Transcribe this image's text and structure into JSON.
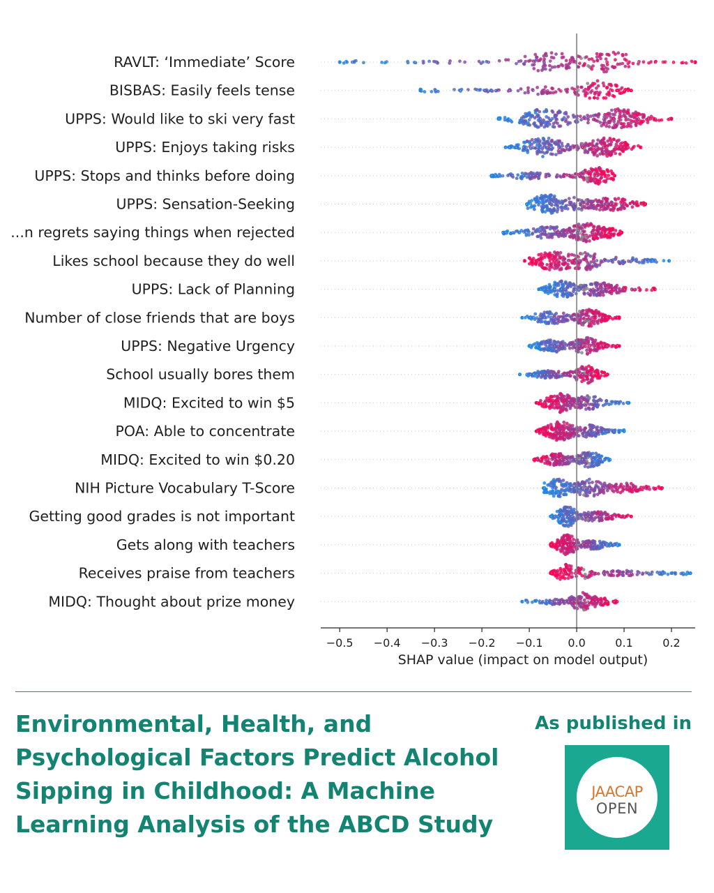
{
  "chart_data": {
    "type": "scatter",
    "subtype": "shap-beeswarm",
    "xlabel": "SHAP value (impact on model output)",
    "xlim": [
      -0.54,
      0.25
    ],
    "xticks": [
      -0.5,
      -0.4,
      -0.3,
      -0.2,
      -0.1,
      0.0,
      0.1,
      0.2
    ],
    "xtick_labels": [
      "−0.5",
      "−0.4",
      "−0.3",
      "−0.2",
      "−0.1",
      "0.0",
      "0.1",
      "0.2"
    ],
    "color_low": "#1e88e5",
    "color_high": "#ff0052",
    "color_missing": "#888888",
    "features": [
      {
        "name": "RAVLT: ‘Immediate’ Score",
        "min": -0.5,
        "max": 0.25,
        "modes": [
          [
            -0.05,
            0.9,
            0.6
          ],
          [
            0.07,
            0.9,
            0.45
          ]
        ],
        "hiRight": true
      },
      {
        "name": "BISBAS: Easily feels tense",
        "min": -0.33,
        "max": 0.115,
        "modes": [
          [
            -0.08,
            0.35,
            0.3
          ],
          [
            0.045,
            0.9,
            0.3
          ]
        ],
        "hiRight": true
      },
      {
        "name": "UPPS: Would like to ski very fast",
        "min": -0.165,
        "max": 0.2,
        "modes": [
          [
            -0.065,
            0.9,
            0.45
          ],
          [
            0.085,
            0.9,
            0.45
          ]
        ],
        "hiRight": true
      },
      {
        "name": "UPPS: Enjoys taking risks",
        "min": -0.15,
        "max": 0.135,
        "modes": [
          [
            -0.07,
            0.85,
            0.35
          ],
          [
            0.06,
            0.85,
            0.35
          ]
        ],
        "hiRight": true
      },
      {
        "name": "UPPS: Stops and thinks before doing",
        "min": -0.18,
        "max": 0.08,
        "modes": [
          [
            -0.1,
            0.35,
            0.3
          ],
          [
            0.045,
            0.75,
            0.25
          ]
        ],
        "hiRight": true
      },
      {
        "name": "UPPS: Sensation-Seeking",
        "min": -0.105,
        "max": 0.145,
        "modes": [
          [
            -0.06,
            0.85,
            0.3
          ],
          [
            0.0,
            0.6,
            0.2
          ],
          [
            0.07,
            0.6,
            0.35
          ]
        ],
        "hiRight": true
      },
      {
        "name": "...n regrets saying things when rejected",
        "min": -0.155,
        "max": 0.095,
        "modes": [
          [
            -0.06,
            0.55,
            0.35
          ],
          [
            0.02,
            0.85,
            0.25
          ],
          [
            0.05,
            0.55,
            0.25
          ]
        ],
        "hiRight": true
      },
      {
        "name": "Likes school because they do well",
        "min": -0.11,
        "max": 0.195,
        "modes": [
          [
            -0.045,
            0.85,
            0.35
          ],
          [
            0.015,
            0.85,
            0.25
          ],
          [
            0.1,
            0.35,
            0.3
          ]
        ],
        "hiRight": false
      },
      {
        "name": "UPPS: Lack of Planning",
        "min": -0.08,
        "max": 0.165,
        "modes": [
          [
            -0.03,
            0.75,
            0.2
          ],
          [
            0.045,
            0.6,
            0.35
          ]
        ],
        "hiRight": true
      },
      {
        "name": "Number of close friends that are boys",
        "min": -0.115,
        "max": 0.09,
        "modes": [
          [
            -0.055,
            0.55,
            0.3
          ],
          [
            0.025,
            0.8,
            0.2
          ]
        ],
        "hiRight": true
      },
      {
        "name": "UPPS: Negative Urgency",
        "min": -0.1,
        "max": 0.09,
        "modes": [
          [
            -0.05,
            0.55,
            0.25
          ],
          [
            0.02,
            0.75,
            0.2
          ]
        ],
        "hiRight": true
      },
      {
        "name": "School usually bores them",
        "min": -0.12,
        "max": 0.065,
        "modes": [
          [
            -0.06,
            0.35,
            0.25
          ],
          [
            0.02,
            0.8,
            0.15
          ]
        ],
        "hiRight": true
      },
      {
        "name": "MIDQ: Excited to win $5",
        "min": -0.085,
        "max": 0.11,
        "modes": [
          [
            -0.035,
            0.85,
            0.2
          ],
          [
            0.025,
            0.65,
            0.2
          ]
        ],
        "hiRight": false
      },
      {
        "name": "POA: Able to concentrate",
        "min": -0.085,
        "max": 0.1,
        "modes": [
          [
            -0.035,
            0.85,
            0.2
          ],
          [
            0.025,
            0.6,
            0.2
          ]
        ],
        "hiRight": false
      },
      {
        "name": "MIDQ: Excited to win $0.20",
        "min": -0.09,
        "max": 0.07,
        "modes": [
          [
            -0.04,
            0.55,
            0.2
          ],
          [
            0.025,
            0.75,
            0.15
          ]
        ],
        "hiRight": false
      },
      {
        "name": "NIH Picture Vocabulary T-Score",
        "min": -0.07,
        "max": 0.18,
        "modes": [
          [
            -0.04,
            0.8,
            0.2
          ],
          [
            0.03,
            0.8,
            0.25
          ],
          [
            0.1,
            0.45,
            0.3
          ]
        ],
        "hiRight": true
      },
      {
        "name": "Getting good grades is not important",
        "min": -0.055,
        "max": 0.115,
        "modes": [
          [
            -0.02,
            0.9,
            0.1
          ],
          [
            0.04,
            0.45,
            0.25
          ]
        ],
        "hiRight": true
      },
      {
        "name": "Gets along with teachers",
        "min": -0.055,
        "max": 0.09,
        "modes": [
          [
            -0.02,
            0.9,
            0.1
          ],
          [
            0.035,
            0.4,
            0.2
          ]
        ],
        "hiRight": false
      },
      {
        "name": "Receives praise from teachers",
        "min": -0.055,
        "max": 0.24,
        "modes": [
          [
            -0.02,
            0.85,
            0.1
          ],
          [
            0.01,
            0.55,
            0.1
          ],
          [
            0.09,
            0.25,
            0.4
          ]
        ],
        "hiRight": false
      },
      {
        "name": "MIDQ: Thought about prize money",
        "min": -0.115,
        "max": 0.085,
        "modes": [
          [
            -0.05,
            0.25,
            0.2
          ],
          [
            0.01,
            0.85,
            0.1
          ],
          [
            0.04,
            0.45,
            0.2
          ]
        ],
        "hiRight": true
      }
    ]
  },
  "footer": {
    "title": "Environmental, Health, and Psychological Factors Predict Alcohol Sipping in Childhood: A Machine Learning Analysis of the ABCD Study",
    "published_label": "As published in",
    "logo_line1": "JAACAP",
    "logo_line2": "OPEN"
  }
}
